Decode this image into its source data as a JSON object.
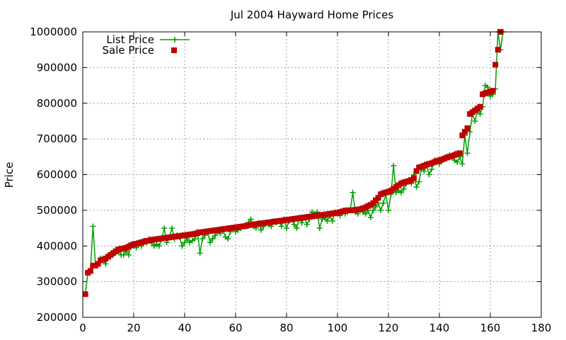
{
  "chart_data": {
    "type": "line",
    "title": "Jul 2004 Hayward Home Prices",
    "xlabel": "",
    "ylabel": "Price",
    "xlim": [
      0,
      180
    ],
    "ylim": [
      200000,
      1000000
    ],
    "x_ticks": [
      0,
      20,
      40,
      60,
      80,
      100,
      120,
      140,
      160,
      180
    ],
    "y_ticks": [
      200000,
      300000,
      400000,
      500000,
      600000,
      700000,
      800000,
      900000,
      1000000
    ],
    "grid": true,
    "legend": "top-left",
    "series": [
      {
        "name": "List Price",
        "style": "line-with-plus-markers",
        "color": "#00a000",
        "values": [
          265000,
          325000,
          330000,
          455000,
          345000,
          350000,
          365000,
          360000,
          350000,
          375000,
          380000,
          385000,
          390000,
          385000,
          375000,
          375000,
          385000,
          375000,
          400000,
          400000,
          395000,
          405000,
          400000,
          415000,
          410000,
          420000,
          410000,
          400000,
          405000,
          400000,
          420000,
          450000,
          410000,
          425000,
          450000,
          420000,
          430000,
          425000,
          400000,
          410000,
          420000,
          410000,
          415000,
          420000,
          440000,
          380000,
          420000,
          430000,
          440000,
          410000,
          420000,
          430000,
          440000,
          435000,
          445000,
          425000,
          420000,
          440000,
          450000,
          440000,
          445000,
          450000,
          455000,
          460000,
          465000,
          475000,
          455000,
          450000,
          465000,
          445000,
          455000,
          465000,
          460000,
          455000,
          470000,
          465000,
          470000,
          455000,
          475000,
          450000,
          470000,
          475000,
          460000,
          450000,
          480000,
          465000,
          480000,
          460000,
          475000,
          495000,
          490000,
          495000,
          450000,
          475000,
          480000,
          470000,
          485000,
          470000,
          495000,
          490000,
          485000,
          495000,
          490000,
          495000,
          500000,
          550000,
          495000,
          490000,
          505000,
          495000,
          490000,
          500000,
          480000,
          500000,
          510000,
          520000,
          500000,
          520000,
          545000,
          500000,
          545000,
          625000,
          550000,
          555000,
          550000,
          560000,
          575000,
          580000,
          575000,
          600000,
          565000,
          580000,
          620000,
          610000,
          625000,
          600000,
          615000,
          640000,
          635000,
          630000,
          640000,
          645000,
          650000,
          655000,
          650000,
          640000,
          635000,
          650000,
          630000,
          710000,
          660000,
          720000,
          770000,
          750000,
          780000,
          770000,
          790000,
          850000,
          845000,
          820000,
          825000,
          840000,
          1000000,
          950000,
          1000000
        ]
      },
      {
        "name": "Sale Price",
        "style": "square-markers",
        "color": "#c00000",
        "values": [
          265000,
          325000,
          330000,
          345000,
          345000,
          350000,
          360000,
          362000,
          365000,
          370000,
          375000,
          380000,
          385000,
          390000,
          392000,
          393000,
          395000,
          398000,
          402000,
          405000,
          406000,
          408000,
          410000,
          412000,
          414000,
          415000,
          417000,
          418000,
          419000,
          420000,
          421000,
          422000,
          423000,
          424000,
          425000,
          426000,
          427000,
          428000,
          429000,
          430000,
          431000,
          432000,
          433000,
          434000,
          436000,
          438000,
          439000,
          440000,
          441000,
          442000,
          443000,
          444000,
          445000,
          446000,
          447000,
          448000,
          449000,
          450000,
          451000,
          452000,
          453000,
          454000,
          455000,
          456000,
          458000,
          459000,
          460000,
          461000,
          462000,
          463000,
          464000,
          465000,
          466000,
          467000,
          468000,
          469000,
          470000,
          471000,
          472000,
          473000,
          474000,
          475000,
          476000,
          477000,
          478000,
          479000,
          480000,
          481000,
          482000,
          483000,
          484000,
          485000,
          486000,
          487000,
          488000,
          489000,
          490000,
          491000,
          492000,
          493000,
          495000,
          497000,
          499000,
          500000,
          500000,
          500000,
          501000,
          502000,
          503000,
          505000,
          508000,
          512000,
          515000,
          520000,
          528000,
          535000,
          545000,
          548000,
          550000,
          552000,
          555000,
          560000,
          565000,
          570000,
          575000,
          578000,
          580000,
          582000,
          585000,
          590000,
          610000,
          620000,
          622000,
          625000,
          628000,
          630000,
          632000,
          635000,
          638000,
          640000,
          642000,
          645000,
          648000,
          650000,
          652000,
          655000,
          658000,
          660000,
          710000,
          720000,
          730000,
          770000,
          775000,
          780000,
          785000,
          790000,
          825000,
          828000,
          830000,
          833000,
          835000,
          908000,
          950000,
          1000000
        ]
      }
    ]
  }
}
